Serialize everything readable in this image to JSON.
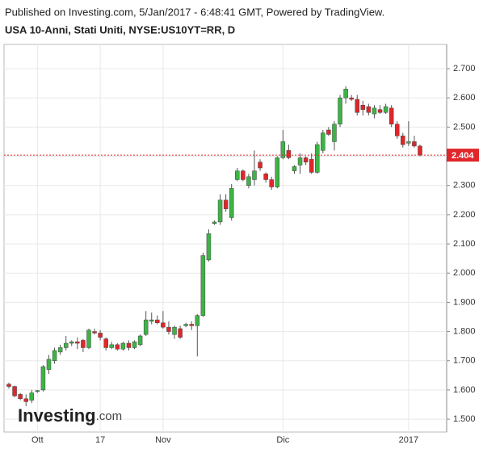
{
  "header": {
    "published": "Published on Investing.com, 5/Jan/2017 - 6:48:41 GMT, Powered by TradingView.",
    "symbol": "USA 10-Anni, Stati Uniti, NYSE:US10YT=RR, D"
  },
  "logo": {
    "name": "Investing",
    "suffix": ".com"
  },
  "chart_data": {
    "type": "candlestick",
    "categories": [
      null,
      null,
      null,
      null,
      null,
      "Ott",
      null,
      null,
      null,
      null,
      null,
      null,
      null,
      null,
      null,
      null,
      "17",
      null,
      null,
      null,
      null,
      null,
      null,
      null,
      null,
      null,
      null,
      "Nov",
      null,
      null,
      null,
      null,
      null,
      null,
      null,
      null,
      null,
      null,
      null,
      null,
      null,
      null,
      null,
      null,
      null,
      null,
      null,
      null,
      "Dic",
      null,
      null,
      null,
      null,
      null,
      null,
      null,
      null,
      null,
      null,
      null,
      null,
      null,
      null,
      null,
      null,
      null,
      null,
      null,
      null,
      null,
      "2017",
      null,
      null
    ],
    "open": [
      1.62,
      1.612,
      1.585,
      1.57,
      1.565,
      1.595,
      1.6,
      1.67,
      1.7,
      1.73,
      1.745,
      1.76,
      1.765,
      1.77,
      1.745,
      1.8,
      1.795,
      1.775,
      1.745,
      1.755,
      1.74,
      1.76,
      1.745,
      1.755,
      1.79,
      1.835,
      1.84,
      1.83,
      1.815,
      1.79,
      1.81,
      1.82,
      1.825,
      1.82,
      1.855,
      2.045,
      2.17,
      2.175,
      2.25,
      2.19,
      2.32,
      2.35,
      2.3,
      2.32,
      2.38,
      2.34,
      2.32,
      2.295,
      2.395,
      2.42,
      2.35,
      2.37,
      2.395,
      2.39,
      2.345,
      2.42,
      2.49,
      2.45,
      2.51,
      2.6,
      2.6,
      2.595,
      2.575,
      2.57,
      2.545,
      2.56,
      2.55,
      2.565,
      2.51,
      2.47,
      2.445,
      2.45,
      2.435
    ],
    "high": [
      1.625,
      1.615,
      1.59,
      1.585,
      1.6,
      1.6,
      1.685,
      1.72,
      1.745,
      1.755,
      1.785,
      1.77,
      1.78,
      1.775,
      1.81,
      1.81,
      1.805,
      1.78,
      1.765,
      1.76,
      1.765,
      1.77,
      1.77,
      1.79,
      1.87,
      1.865,
      1.855,
      1.87,
      1.835,
      1.82,
      1.82,
      1.83,
      1.835,
      1.86,
      2.07,
      2.15,
      2.18,
      2.27,
      2.27,
      2.305,
      2.36,
      2.355,
      2.34,
      2.42,
      2.39,
      2.345,
      2.33,
      2.4,
      2.49,
      2.44,
      2.37,
      2.41,
      2.4,
      2.41,
      2.45,
      2.49,
      2.5,
      2.52,
      2.61,
      2.64,
      2.61,
      2.61,
      2.59,
      2.58,
      2.575,
      2.575,
      2.58,
      2.575,
      2.52,
      2.48,
      2.52,
      2.47,
      2.44
    ],
    "low": [
      1.605,
      1.575,
      1.565,
      1.545,
      1.555,
      1.59,
      1.595,
      1.655,
      1.69,
      1.72,
      1.735,
      1.75,
      1.74,
      1.73,
      1.74,
      1.79,
      1.77,
      1.735,
      1.74,
      1.735,
      1.735,
      1.735,
      1.74,
      1.75,
      1.785,
      1.825,
      1.825,
      1.81,
      1.79,
      1.775,
      1.775,
      1.815,
      1.805,
      1.715,
      1.85,
      2.04,
      2.165,
      2.165,
      2.21,
      2.18,
      2.315,
      2.315,
      2.29,
      2.3,
      2.35,
      2.31,
      2.285,
      2.29,
      2.39,
      2.39,
      2.34,
      2.34,
      2.37,
      2.34,
      2.34,
      2.41,
      2.47,
      2.42,
      2.5,
      2.58,
      2.59,
      2.54,
      2.54,
      2.54,
      2.53,
      2.545,
      2.545,
      2.5,
      2.46,
      2.43,
      2.435,
      2.43,
      2.4
    ],
    "close": [
      1.612,
      1.58,
      1.57,
      1.56,
      1.59,
      1.598,
      1.68,
      1.705,
      1.735,
      1.745,
      1.76,
      1.765,
      1.76,
      1.745,
      1.805,
      1.795,
      1.78,
      1.745,
      1.755,
      1.74,
      1.76,
      1.745,
      1.765,
      1.785,
      1.84,
      1.84,
      1.83,
      1.815,
      1.8,
      1.815,
      1.78,
      1.825,
      1.82,
      1.855,
      2.06,
      2.135,
      2.175,
      2.25,
      2.22,
      2.29,
      2.35,
      2.32,
      2.33,
      2.35,
      2.36,
      2.32,
      2.295,
      2.395,
      2.45,
      2.395,
      2.365,
      2.395,
      2.38,
      2.345,
      2.44,
      2.48,
      2.475,
      2.51,
      2.6,
      2.63,
      2.595,
      2.55,
      2.56,
      2.55,
      2.565,
      2.55,
      2.57,
      2.51,
      2.47,
      2.44,
      2.45,
      2.435,
      2.404
    ],
    "up_color": "#3cb445",
    "down_color": "#e0262a",
    "ylim": [
      1.456,
      2.783
    ],
    "yticks": [
      {
        "value": 1.5,
        "label": "1.500"
      },
      {
        "value": 1.6,
        "label": "1.600"
      },
      {
        "value": 1.7,
        "label": "1.700"
      },
      {
        "value": 1.8,
        "label": "1.800"
      },
      {
        "value": 1.9,
        "label": "1.900"
      },
      {
        "value": 2.0,
        "label": "2.000"
      },
      {
        "value": 2.1,
        "label": "2.100"
      },
      {
        "value": 2.2,
        "label": "2.200"
      },
      {
        "value": 2.3,
        "label": "2.300"
      },
      {
        "value": 2.4,
        "label": "2.400"
      },
      {
        "value": 2.5,
        "label": "2.500"
      },
      {
        "value": 2.6,
        "label": "2.600"
      },
      {
        "value": 2.7,
        "label": "2.700"
      }
    ],
    "grid": true
  }
}
